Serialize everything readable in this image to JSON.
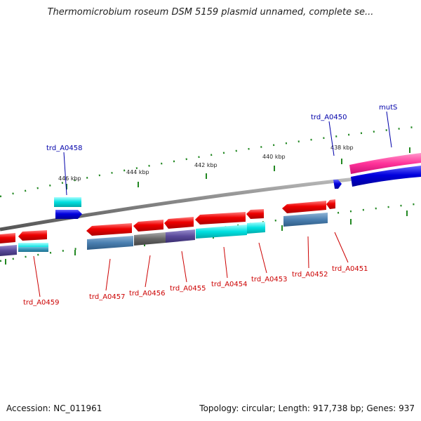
{
  "title": "Thermomicrobium roseum DSM 5159 plasmid unnamed, complete se...",
  "footer": {
    "accession": "Accession: NC_011961",
    "summary": "Topology: circular; Length: 917,738 bp; Genes: 937"
  },
  "ticks": [
    "446 kbp",
    "444 kbp",
    "442 kbp",
    "440 kbp",
    "438 kbp"
  ],
  "genes_forward": [
    {
      "name": "trd_A0458",
      "color": "#0000dd"
    },
    {
      "name": "trd_A0450",
      "color": "#0000dd"
    },
    {
      "name": "mutS",
      "color": "#0000dd"
    }
  ],
  "genes_reverse": [
    {
      "name": "trd_A0459"
    },
    {
      "name": "trd_A0457"
    },
    {
      "name": "trd_A0456"
    },
    {
      "name": "trd_A0455"
    },
    {
      "name": "trd_A0454"
    },
    {
      "name": "trd_A0453"
    },
    {
      "name": "trd_A0452"
    },
    {
      "name": "trd_A0451"
    }
  ],
  "colors": {
    "reverse_gene": "#ee0000",
    "forward_gene": "#0000dd",
    "backbone": "#888888",
    "ticks": "#228822",
    "cog_cyan": "#00e0e0",
    "cog_steel": "#4a7fb0",
    "cog_gray": "#666666",
    "cog_purple": "#5a4a9a",
    "cog_pink": "#ff3399"
  }
}
